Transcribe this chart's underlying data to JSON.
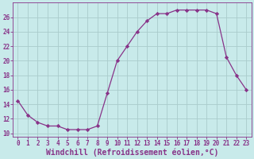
{
  "x": [
    0,
    1,
    2,
    3,
    4,
    5,
    6,
    7,
    8,
    9,
    10,
    11,
    12,
    13,
    14,
    15,
    16,
    17,
    18,
    19,
    20,
    21,
    22,
    23
  ],
  "y": [
    14.5,
    12.5,
    11.5,
    11.0,
    11.0,
    10.5,
    10.5,
    10.5,
    11.0,
    15.5,
    20.0,
    22.0,
    24.0,
    25.5,
    26.5,
    26.5,
    27.0,
    27.0,
    27.0,
    27.0,
    26.5,
    20.5,
    18.0,
    16.0
  ],
  "line_color": "#883388",
  "marker": "D",
  "marker_size": 2.2,
  "bg_color": "#c8eaea",
  "grid_color": "#aacccc",
  "spine_color": "#883388",
  "tick_color": "#883388",
  "label_color": "#883388",
  "xlabel": "Windchill (Refroidissement éolien,°C)",
  "xlabel_fontsize": 7,
  "xlim": [
    -0.5,
    23.5
  ],
  "ylim": [
    9.5,
    28.0
  ],
  "yticks": [
    10,
    12,
    14,
    16,
    18,
    20,
    22,
    24,
    26
  ],
  "xticks": [
    0,
    1,
    2,
    3,
    4,
    5,
    6,
    7,
    8,
    9,
    10,
    11,
    12,
    13,
    14,
    15,
    16,
    17,
    18,
    19,
    20,
    21,
    22,
    23
  ]
}
